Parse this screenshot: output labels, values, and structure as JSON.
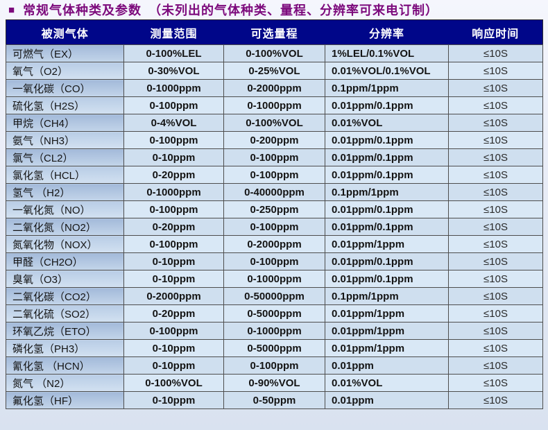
{
  "page": {
    "title_bullet": "■",
    "title_text": "常规气体种类及参数",
    "title_note": "（未列出的气体种类、量程、分辨率可来电订制）"
  },
  "table": {
    "headers": [
      "被测气体",
      "测量范围",
      "可选量程",
      "分辨率",
      "响应时间"
    ],
    "rows": [
      [
        "可燃气（EX）",
        "0-100%LEL",
        "0-100%VOL",
        "1%LEL/0.1%VOL",
        "≤10S"
      ],
      [
        "氧气（O2）",
        "0-30%VOL",
        "0-25%VOL",
        "0.01%VOL/0.1%VOL",
        "≤10S"
      ],
      [
        "一氧化碳（CO）",
        "0-1000ppm",
        "0-2000ppm",
        "0.1ppm/1ppm",
        "≤10S"
      ],
      [
        "硫化氢（H2S）",
        "0-100ppm",
        "0-1000ppm",
        "0.01ppm/0.1ppm",
        "≤10S"
      ],
      [
        "甲烷（CH4）",
        "0-4%VOL",
        "0-100%VOL",
        "0.01%VOL",
        "≤10S"
      ],
      [
        "氨气（NH3）",
        "0-100ppm",
        "0-200ppm",
        "0.01ppm/0.1ppm",
        "≤10S"
      ],
      [
        "氯气（CL2）",
        "0-10ppm",
        "0-100ppm",
        "0.01ppm/0.1ppm",
        "≤10S"
      ],
      [
        "氯化氢（HCL）",
        "0-20ppm",
        "0-100ppm",
        "0.01ppm/0.1ppm",
        "≤10S"
      ],
      [
        "氢气 （H2）",
        "0-1000ppm",
        "0-40000ppm",
        "0.1ppm/1ppm",
        "≤10S"
      ],
      [
        "一氧化氮（NO）",
        "0-100ppm",
        "0-250ppm",
        "0.01ppm/0.1ppm",
        "≤10S"
      ],
      [
        "二氧化氮（NO2）",
        "0-20ppm",
        "0-100ppm",
        "0.01ppm/0.1ppm",
        "≤10S"
      ],
      [
        "氮氧化物（NOX）",
        "0-100ppm",
        "0-2000ppm",
        "0.01ppm/1ppm",
        "≤10S"
      ],
      [
        "甲醛（CH2O）",
        "0-10ppm",
        "0-100ppm",
        "0.01ppm/0.1ppm",
        "≤10S"
      ],
      [
        "臭氧（O3）",
        "0-10ppm",
        "0-1000ppm",
        "0.01ppm/0.1ppm",
        "≤10S"
      ],
      [
        "二氧化碳（CO2）",
        "0-2000ppm",
        "0-50000ppm",
        "0.1ppm/1ppm",
        "≤10S"
      ],
      [
        "二氧化硫（SO2）",
        "0-20ppm",
        "0-5000ppm",
        "0.01ppm/1ppm",
        "≤10S"
      ],
      [
        "环氧乙烷（ETO）",
        "0-100ppm",
        "0-1000ppm",
        "0.01ppm/1ppm",
        "≤10S"
      ],
      [
        "磷化氢（PH3）",
        "0-10ppm",
        "0-5000ppm",
        "0.01ppm/1ppm",
        "≤10S"
      ],
      [
        "氰化氢 （HCN）",
        "0-10ppm",
        "0-100ppm",
        "0.01ppm",
        "≤10S"
      ],
      [
        "氮气 （N2）",
        "0-100%VOL",
        "0-90%VOL",
        "0.01%VOL",
        "≤10S"
      ],
      [
        "氟化氢（HF）",
        "0-10ppm",
        "0-50ppm",
        "0.01ppm",
        "≤10S"
      ]
    ]
  },
  "colors": {
    "title_text": "#7C0A7C",
    "header_bg": "#000689",
    "header_text": "#FFFFFF",
    "border": "#4D4D4D",
    "row_odd_data_bg": "#CFDFEF",
    "row_even_data_bg": "#D9E8F6",
    "gas_col_odd_bg": "#A3BADA",
    "gas_col_even_bg": "#B9CDE6",
    "page_bg": "#E9EDF7"
  }
}
